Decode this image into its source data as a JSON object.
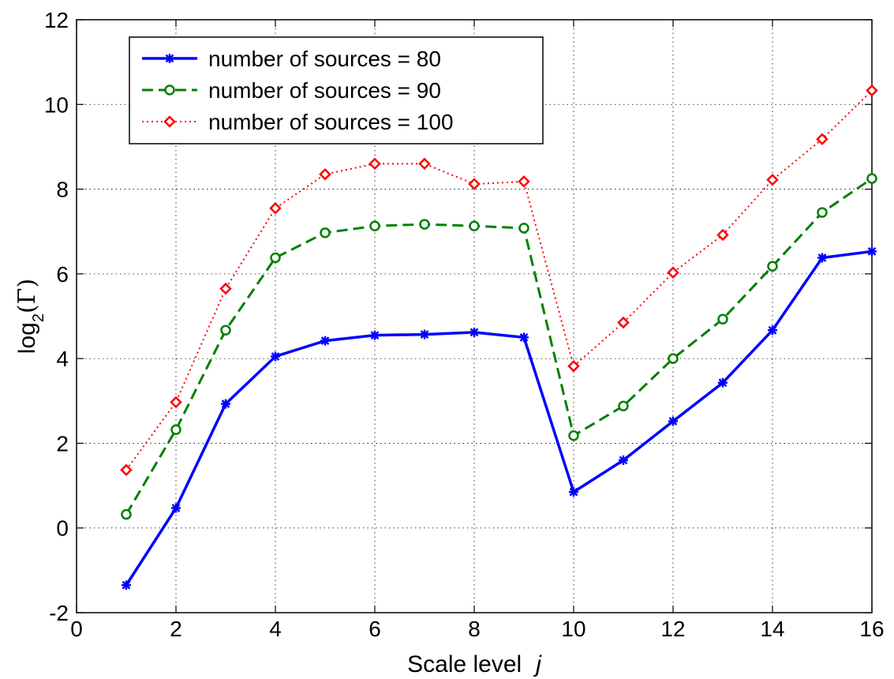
{
  "chart_data": {
    "type": "line",
    "xlabel": "Scale level",
    "xlabel_var": "j",
    "ylabel_base": "log",
    "ylabel_sub": "2",
    "ylabel_arg": "(Γ)",
    "xlim": [
      0,
      16
    ],
    "ylim": [
      -2,
      12
    ],
    "x_ticks": [
      "0",
      "2",
      "4",
      "6",
      "8",
      "10",
      "12",
      "14",
      "16"
    ],
    "y_ticks": [
      "-2",
      "0",
      "2",
      "4",
      "6",
      "8",
      "10",
      "12"
    ],
    "grid": true,
    "legend_position": "top-left",
    "x": [
      1,
      2,
      3,
      4,
      5,
      6,
      7,
      8,
      9,
      10,
      11,
      12,
      13,
      14,
      15,
      16
    ],
    "series": [
      {
        "name": "number of sources = 80",
        "color": "#0000ff",
        "line_style": "solid",
        "marker": "asterisk",
        "values": [
          -1.35,
          0.47,
          2.93,
          4.05,
          4.42,
          4.55,
          4.57,
          4.62,
          4.5,
          0.85,
          1.6,
          2.52,
          3.43,
          4.67,
          6.38,
          6.53
        ]
      },
      {
        "name": "number of sources = 90",
        "color": "#008000",
        "line_style": "dashed",
        "marker": "circle",
        "values": [
          0.32,
          2.32,
          4.67,
          6.38,
          6.97,
          7.13,
          7.17,
          7.13,
          7.08,
          2.18,
          2.88,
          4.0,
          4.93,
          6.18,
          7.45,
          8.25
        ]
      },
      {
        "name": "number of sources = 100",
        "color": "#ff0000",
        "line_style": "dotted",
        "marker": "diamond",
        "values": [
          1.37,
          2.97,
          5.65,
          7.55,
          8.35,
          8.6,
          8.6,
          8.12,
          8.18,
          3.82,
          4.85,
          6.03,
          6.92,
          8.22,
          9.18,
          10.33
        ]
      }
    ]
  }
}
